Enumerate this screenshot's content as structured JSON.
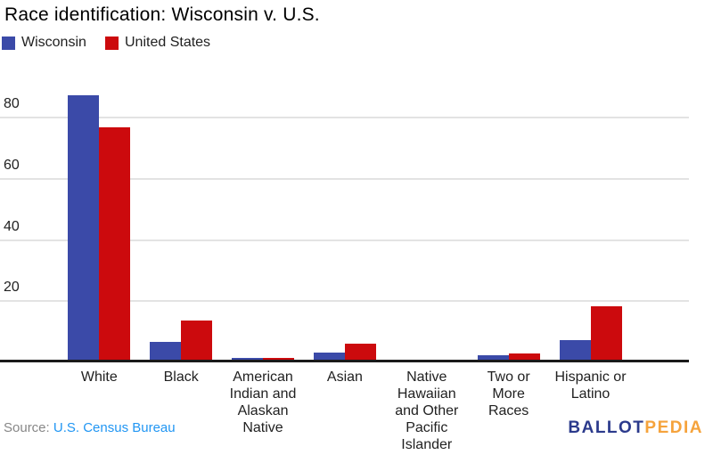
{
  "title": "Race identification: Wisconsin v. U.S.",
  "legend": [
    {
      "label": "Wisconsin",
      "color": "#3b4aa8"
    },
    {
      "label": "United States",
      "color": "#cc0a0d"
    }
  ],
  "chart_data": {
    "type": "bar",
    "title": "Race identification: Wisconsin v. U.S.",
    "categories": [
      "White",
      "Black",
      "American Indian and Alaskan Native",
      "Asian",
      "Native Hawaiian and Other Pacific Islander",
      "Two or More Races",
      "Hispanic or Latino"
    ],
    "category_label_lines": [
      [
        "White"
      ],
      [
        "Black"
      ],
      [
        "American",
        "Indian and",
        "Alaskan",
        "Native"
      ],
      [
        "Asian"
      ],
      [
        "Native",
        "Hawaiian",
        "and Other",
        "Pacific",
        "Islander"
      ],
      [
        "Two or",
        "More",
        "Races"
      ],
      [
        "Hispanic or",
        "Latino"
      ]
    ],
    "series": [
      {
        "name": "Wisconsin",
        "color": "#3b4aa8",
        "values": [
          87.0,
          6.4,
          1.1,
          2.9,
          0.1,
          1.9,
          6.9
        ]
      },
      {
        "name": "United States",
        "color": "#cc0a0d",
        "values": [
          76.6,
          13.4,
          1.3,
          5.9,
          0.2,
          2.7,
          18.1
        ]
      }
    ],
    "xlabel": "",
    "ylabel": "",
    "yticks": [
      20,
      40,
      60,
      80
    ],
    "ylim": [
      0,
      90
    ],
    "grid": true,
    "legend_position": "top-left",
    "unit": "percent"
  },
  "footer": {
    "source_prefix": "Source: ",
    "source_link": "U.S. Census Bureau"
  },
  "logo": {
    "part1": "BALLOT",
    "part2": "PEDIA",
    "part1_color": "#2b3a8c",
    "part2_color": "#f5a33c"
  }
}
